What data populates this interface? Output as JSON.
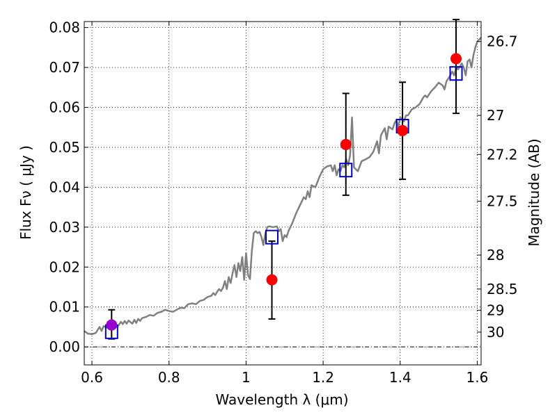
{
  "chart_data": {
    "type": "scatter",
    "xlabel": "Wavelength  λ (μm)",
    "ylabel_left": "Flux  Fν  ( μJy )",
    "ylabel_right": "Magnitude (AB)",
    "xlim": [
      0.58,
      1.61
    ],
    "ylim": [
      -0.0045,
      0.0815
    ],
    "grid": true,
    "x_ticks": [
      0.6,
      0.8,
      1.0,
      1.2,
      1.4,
      1.6
    ],
    "x_tick_labels": [
      "0.6",
      "0.8",
      "1",
      "1.2",
      "1.4",
      "1.6"
    ],
    "y_ticks": [
      0.0,
      0.01,
      0.02,
      0.03,
      0.04,
      0.05,
      0.06,
      0.07,
      0.08
    ],
    "y_tick_labels": [
      "0.00",
      "0.01",
      "0.02",
      "0.03",
      "0.04",
      "0.05",
      "0.06",
      "0.07",
      "0.08"
    ],
    "right_ticks": [
      {
        "label": "26.7",
        "flux": 0.0765
      },
      {
        "label": "27",
        "flux": 0.058
      },
      {
        "label": "27.2",
        "flux": 0.0482
      },
      {
        "label": "27.5",
        "flux": 0.0365
      },
      {
        "label": "28",
        "flux": 0.023
      },
      {
        "label": "28.5",
        "flux": 0.0145
      },
      {
        "label": "29",
        "flux": 0.0092
      },
      {
        "label": "30",
        "flux": 0.0037
      }
    ],
    "colors": {
      "spectrum": "#808080",
      "observed": "#ff0000",
      "model_box": "#0000cc",
      "highlight": "#9900cc",
      "errorbar": "#000000"
    },
    "series": [
      {
        "kind": "model_spectrum",
        "points": [
          [
            0.58,
            0.004
          ],
          [
            0.59,
            0.0033
          ],
          [
            0.6,
            0.0032
          ],
          [
            0.61,
            0.0035
          ],
          [
            0.615,
            0.0043
          ],
          [
            0.62,
            0.005
          ],
          [
            0.625,
            0.004
          ],
          [
            0.63,
            0.0052
          ],
          [
            0.64,
            0.0048
          ],
          [
            0.65,
            0.0055
          ],
          [
            0.655,
            0.0045
          ],
          [
            0.66,
            0.006
          ],
          [
            0.665,
            0.005
          ],
          [
            0.67,
            0.0055
          ],
          [
            0.675,
            0.0063
          ],
          [
            0.68,
            0.0057
          ],
          [
            0.685,
            0.0065
          ],
          [
            0.69,
            0.0058
          ],
          [
            0.695,
            0.0066
          ],
          [
            0.7,
            0.0062
          ],
          [
            0.705,
            0.0058
          ],
          [
            0.71,
            0.0068
          ],
          [
            0.715,
            0.006
          ],
          [
            0.72,
            0.007
          ],
          [
            0.725,
            0.0065
          ],
          [
            0.73,
            0.0072
          ],
          [
            0.74,
            0.0075
          ],
          [
            0.75,
            0.008
          ],
          [
            0.76,
            0.0078
          ],
          [
            0.77,
            0.0085
          ],
          [
            0.78,
            0.0088
          ],
          [
            0.79,
            0.0093
          ],
          [
            0.8,
            0.009
          ],
          [
            0.81,
            0.0088
          ],
          [
            0.82,
            0.0093
          ],
          [
            0.83,
            0.0098
          ],
          [
            0.84,
            0.0097
          ],
          [
            0.845,
            0.0103
          ],
          [
            0.85,
            0.0107
          ],
          [
            0.86,
            0.0109
          ],
          [
            0.87,
            0.0107
          ],
          [
            0.88,
            0.0115
          ],
          [
            0.89,
            0.0118
          ],
          [
            0.9,
            0.0125
          ],
          [
            0.91,
            0.0128
          ],
          [
            0.915,
            0.0135
          ],
          [
            0.92,
            0.013
          ],
          [
            0.925,
            0.0138
          ],
          [
            0.93,
            0.0145
          ],
          [
            0.935,
            0.014
          ],
          [
            0.94,
            0.0148
          ],
          [
            0.945,
            0.0165
          ],
          [
            0.95,
            0.0145
          ],
          [
            0.955,
            0.0175
          ],
          [
            0.96,
            0.016
          ],
          [
            0.965,
            0.0185
          ],
          [
            0.97,
            0.0205
          ],
          [
            0.975,
            0.0175
          ],
          [
            0.98,
            0.021
          ],
          [
            0.985,
            0.019
          ],
          [
            0.99,
            0.0225
          ],
          [
            0.995,
            0.0168
          ],
          [
            1.0,
            0.0235
          ],
          [
            1.005,
            0.018
          ],
          [
            1.01,
            0.017
          ],
          [
            1.015,
            0.024
          ],
          [
            1.02,
            0.0285
          ],
          [
            1.025,
            0.029
          ],
          [
            1.03,
            0.0285
          ],
          [
            1.035,
            0.0288
          ],
          [
            1.04,
            0.0275
          ],
          [
            1.045,
            0.0255
          ],
          [
            1.05,
            0.0285
          ],
          [
            1.055,
            0.03
          ],
          [
            1.06,
            0.0302
          ],
          [
            1.07,
            0.03
          ],
          [
            1.08,
            0.0302
          ],
          [
            1.085,
            0.029
          ],
          [
            1.09,
            0.0295
          ],
          [
            1.095,
            0.0265
          ],
          [
            1.1,
            0.028
          ],
          [
            1.105,
            0.0275
          ],
          [
            1.11,
            0.029
          ],
          [
            1.12,
            0.031
          ],
          [
            1.13,
            0.0335
          ],
          [
            1.14,
            0.0355
          ],
          [
            1.15,
            0.0375
          ],
          [
            1.155,
            0.037
          ],
          [
            1.16,
            0.039
          ],
          [
            1.165,
            0.0375
          ],
          [
            1.17,
            0.0405
          ],
          [
            1.18,
            0.04
          ],
          [
            1.19,
            0.0425
          ],
          [
            1.2,
            0.0445
          ],
          [
            1.21,
            0.0452
          ],
          [
            1.22,
            0.0455
          ],
          [
            1.225,
            0.044
          ],
          [
            1.23,
            0.0455
          ],
          [
            1.235,
            0.043
          ],
          [
            1.24,
            0.0445
          ],
          [
            1.245,
            0.044
          ],
          [
            1.25,
            0.0455
          ],
          [
            1.255,
            0.045
          ],
          [
            1.26,
            0.047
          ],
          [
            1.265,
            0.0455
          ],
          [
            1.27,
            0.048
          ],
          [
            1.275,
            0.0575
          ],
          [
            1.28,
            0.045
          ],
          [
            1.29,
            0.044
          ],
          [
            1.3,
            0.0465
          ],
          [
            1.31,
            0.047
          ],
          [
            1.32,
            0.0475
          ],
          [
            1.33,
            0.0488
          ],
          [
            1.34,
            0.0515
          ],
          [
            1.345,
            0.0485
          ],
          [
            1.35,
            0.053
          ],
          [
            1.36,
            0.0548
          ],
          [
            1.365,
            0.052
          ],
          [
            1.37,
            0.0552
          ],
          [
            1.38,
            0.0545
          ],
          [
            1.385,
            0.056
          ],
          [
            1.39,
            0.0568
          ],
          [
            1.395,
            0.055
          ],
          [
            1.4,
            0.0575
          ],
          [
            1.41,
            0.0565
          ],
          [
            1.415,
            0.058
          ],
          [
            1.42,
            0.058
          ],
          [
            1.43,
            0.0595
          ],
          [
            1.44,
            0.06
          ],
          [
            1.45,
            0.0608
          ],
          [
            1.46,
            0.0625
          ],
          [
            1.465,
            0.063
          ],
          [
            1.47,
            0.0625
          ],
          [
            1.48,
            0.064
          ],
          [
            1.49,
            0.065
          ],
          [
            1.5,
            0.0662
          ],
          [
            1.51,
            0.0655
          ],
          [
            1.515,
            0.0645
          ],
          [
            1.52,
            0.0665
          ],
          [
            1.53,
            0.068
          ],
          [
            1.535,
            0.069
          ],
          [
            1.54,
            0.068
          ],
          [
            1.545,
            0.07
          ],
          [
            1.55,
            0.0695
          ],
          [
            1.56,
            0.071
          ],
          [
            1.565,
            0.07
          ],
          [
            1.57,
            0.068
          ],
          [
            1.575,
            0.0715
          ],
          [
            1.58,
            0.072
          ],
          [
            1.585,
            0.07
          ],
          [
            1.59,
            0.073
          ],
          [
            1.595,
            0.075
          ],
          [
            1.6,
            0.0765
          ],
          [
            1.61,
            0.0775
          ]
        ]
      },
      {
        "kind": "observed",
        "points": [
          {
            "x": 0.651,
            "y": 0.0055,
            "ylo": 0.002,
            "yhi": 0.0093,
            "highlight": true
          },
          {
            "x": 1.067,
            "y": 0.0168,
            "ylo": 0.007,
            "yhi": 0.0265
          },
          {
            "x": 1.259,
            "y": 0.0507,
            "ylo": 0.038,
            "yhi": 0.0635
          },
          {
            "x": 1.406,
            "y": 0.0542,
            "ylo": 0.042,
            "yhi": 0.0663
          },
          {
            "x": 1.545,
            "y": 0.0722,
            "ylo": 0.0585,
            "yhi": 0.082
          }
        ]
      },
      {
        "kind": "model_photometry",
        "points": [
          {
            "x": 0.651,
            "y": 0.0038
          },
          {
            "x": 1.067,
            "y": 0.0275
          },
          {
            "x": 1.259,
            "y": 0.0443
          },
          {
            "x": 1.406,
            "y": 0.0553
          },
          {
            "x": 1.545,
            "y": 0.0685
          }
        ]
      }
    ]
  }
}
